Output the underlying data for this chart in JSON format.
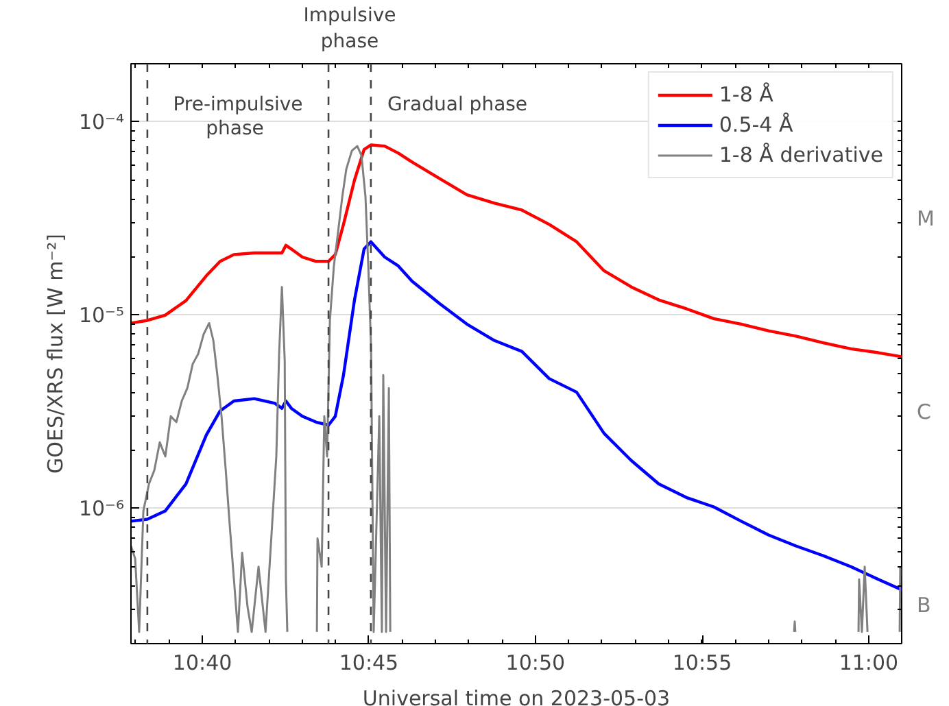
{
  "chart_data": {
    "type": "line",
    "xlabel": "Universal time on 2023-05-03",
    "ylabel": "GOES/XRS flux [W m⁻²]",
    "log": "y",
    "grid": "y",
    "legend": "top right",
    "line_style": "solid",
    "marker": "none",
    "xlim": [
      10.631,
      11.0165
    ],
    "xticks": [
      {
        "value": 10.6667,
        "label": "10:40"
      },
      {
        "value": 10.75,
        "label": "10:45"
      },
      {
        "value": 10.8333,
        "label": "10:50"
      },
      {
        "value": 10.9167,
        "label": "10:55"
      },
      {
        "value": 11.0,
        "label": "11:00"
      }
    ],
    "ylim": [
      2e-07,
      0.0002
    ],
    "yticks": [
      {
        "value": 1e-06,
        "label": "10⁻⁶"
      },
      {
        "value": 1e-05,
        "label": "10⁻⁵"
      },
      {
        "value": 0.0001,
        "label": "10⁻⁴"
      }
    ],
    "x": [
      10.631,
      10.6392,
      10.6481,
      10.6585,
      10.6687,
      10.6756,
      10.6825,
      10.6927,
      10.703,
      10.7065,
      10.7085,
      10.7112,
      10.7167,
      10.7236,
      10.7298,
      10.7332,
      10.7373,
      10.7428,
      10.7476,
      10.751,
      10.7579,
      10.7647,
      10.7716,
      10.7853,
      10.799,
      10.8128,
      10.8265,
      10.8402,
      10.8539,
      10.8676,
      10.8813,
      10.895,
      10.9088,
      10.9225,
      10.9362,
      10.9499,
      10.9636,
      10.9773,
      10.9911,
      11.0048,
      11.0165
    ],
    "series": [
      {
        "name": "1-8 Å",
        "color": "#ff0000",
        "values": [
          9.1e-06,
          9.4e-06,
          1e-05,
          1.19e-05,
          1.6e-05,
          1.9e-05,
          2.06e-05,
          2.1e-05,
          2.1e-05,
          2.1e-05,
          2.3e-05,
          2.2e-05,
          2e-05,
          1.9e-05,
          1.9e-05,
          2.06e-05,
          2.95e-05,
          5e-05,
          7.2e-05,
          7.6e-05,
          7.5e-05,
          6.9e-05,
          6.2e-05,
          5.1e-05,
          4.2e-05,
          3.8e-05,
          3.5e-05,
          2.95e-05,
          2.4e-05,
          1.7e-05,
          1.4e-05,
          1.2e-05,
          1.08e-05,
          9.6e-06,
          9e-06,
          8.3e-06,
          7.8e-06,
          7.2e-06,
          6.7e-06,
          6.4e-06,
          6.1e-06
        ]
      },
      {
        "name": "0.5-4 Å",
        "color": "#0000ff",
        "values": [
          8.6e-07,
          8.8e-07,
          9.7e-07,
          1.34e-06,
          2.4e-06,
          3.2e-06,
          3.6e-06,
          3.7e-06,
          3.5e-06,
          3.3e-06,
          3.6e-06,
          3.3e-06,
          3e-06,
          2.8e-06,
          2.7e-06,
          3e-06,
          4.9e-06,
          1.2e-05,
          2.2e-05,
          2.4e-05,
          2e-05,
          1.8e-05,
          1.5e-05,
          1.15e-05,
          9e-06,
          7.4e-06,
          6.5e-06,
          4.7e-06,
          4e-06,
          2.45e-06,
          1.77e-06,
          1.34e-06,
          1.14e-06,
          1.02e-06,
          8.6e-07,
          7.3e-07,
          6.4e-07,
          5.7e-07,
          5e-07,
          4.3e-07,
          3.8e-07
        ]
      },
      {
        "name": "1-8 Å derivative",
        "color": "#808080",
        "x": [
          10.631,
          10.6331,
          10.6351,
          10.6372,
          10.64,
          10.6427,
          10.6454,
          10.6482,
          10.6509,
          10.6537,
          10.6564,
          10.6592,
          10.6619,
          10.6646,
          10.6674,
          10.6701,
          10.6722,
          10.6742,
          10.6763,
          10.6784,
          10.6804,
          10.6825,
          10.6845,
          10.6866,
          10.6893,
          10.6914,
          10.6948,
          10.6983,
          10.7037,
          10.7051,
          10.7065,
          10.7079,
          10.7085,
          10.7092,
          10.7099,
          10.724,
          10.7243,
          10.7264,
          10.7277,
          10.7291,
          10.7305,
          10.7325,
          10.7346,
          10.7367,
          10.7387,
          10.7415,
          10.7442,
          10.7463,
          10.7483,
          10.7497,
          10.7511,
          10.7524,
          10.7552,
          10.7565,
          10.7572,
          10.7586,
          10.76,
          10.7607,
          10.7615,
          10.9627,
          10.963,
          10.9633,
          10.9637,
          10.9949,
          10.9952,
          10.9966,
          10.998,
          10.9994,
          11.0,
          11.0155,
          11.0158
        ],
        "values": [
          6.4e-07,
          5.5e-07,
          2.3e-07,
          9.7e-07,
          1.34e-06,
          1.58e-06,
          2.2e-06,
          1.86e-06,
          3e-06,
          2.8e-06,
          3.6e-06,
          4.2e-06,
          5.6e-06,
          6.3e-06,
          8e-06,
          9.1e-06,
          7.4e-06,
          4.9e-06,
          3e-06,
          1.58e-06,
          8.2e-07,
          4.3e-07,
          2.3e-07,
          5.9e-07,
          3.1e-07,
          2.3e-07,
          5e-07,
          2.3e-07,
          1.86e-06,
          6.3e-06,
          1.4e-05,
          5.8e-06,
          4.3e-07,
          2.3e-07,
          null,
          2.3e-07,
          7e-07,
          5e-07,
          3e-06,
          1.86e-06,
          9.4e-06,
          1.8e-05,
          2.7e-05,
          4.1e-05,
          5.7e-05,
          7.1e-05,
          7.5e-05,
          6.7e-05,
          4.1e-05,
          1.8e-05,
          6.8e-06,
          2.3e-07,
          3e-06,
          2.3e-07,
          4.9e-06,
          2.3e-07,
          4.2e-06,
          2.3e-07,
          null,
          2.3e-07,
          2.6e-07,
          2.3e-07,
          null,
          2.3e-07,
          4.3e-07,
          2.3e-07,
          5e-07,
          2.3e-07,
          null,
          2.3e-07,
          5e-07
        ]
      }
    ],
    "ref_lines": [
      {
        "axis": "x",
        "value": 10.6392,
        "color": "#444444",
        "line_style": "dashed"
      },
      {
        "axis": "x",
        "value": 10.7298,
        "color": "#444444",
        "line_style": "dashed"
      },
      {
        "axis": "x",
        "value": 10.751,
        "color": "#444444",
        "line_style": "dashed"
      }
    ],
    "annotations": [
      "Pre-impulsive\n phase",
      "Impulsive\nphase",
      "Gradual phase",
      "M",
      "C",
      "B"
    ]
  }
}
